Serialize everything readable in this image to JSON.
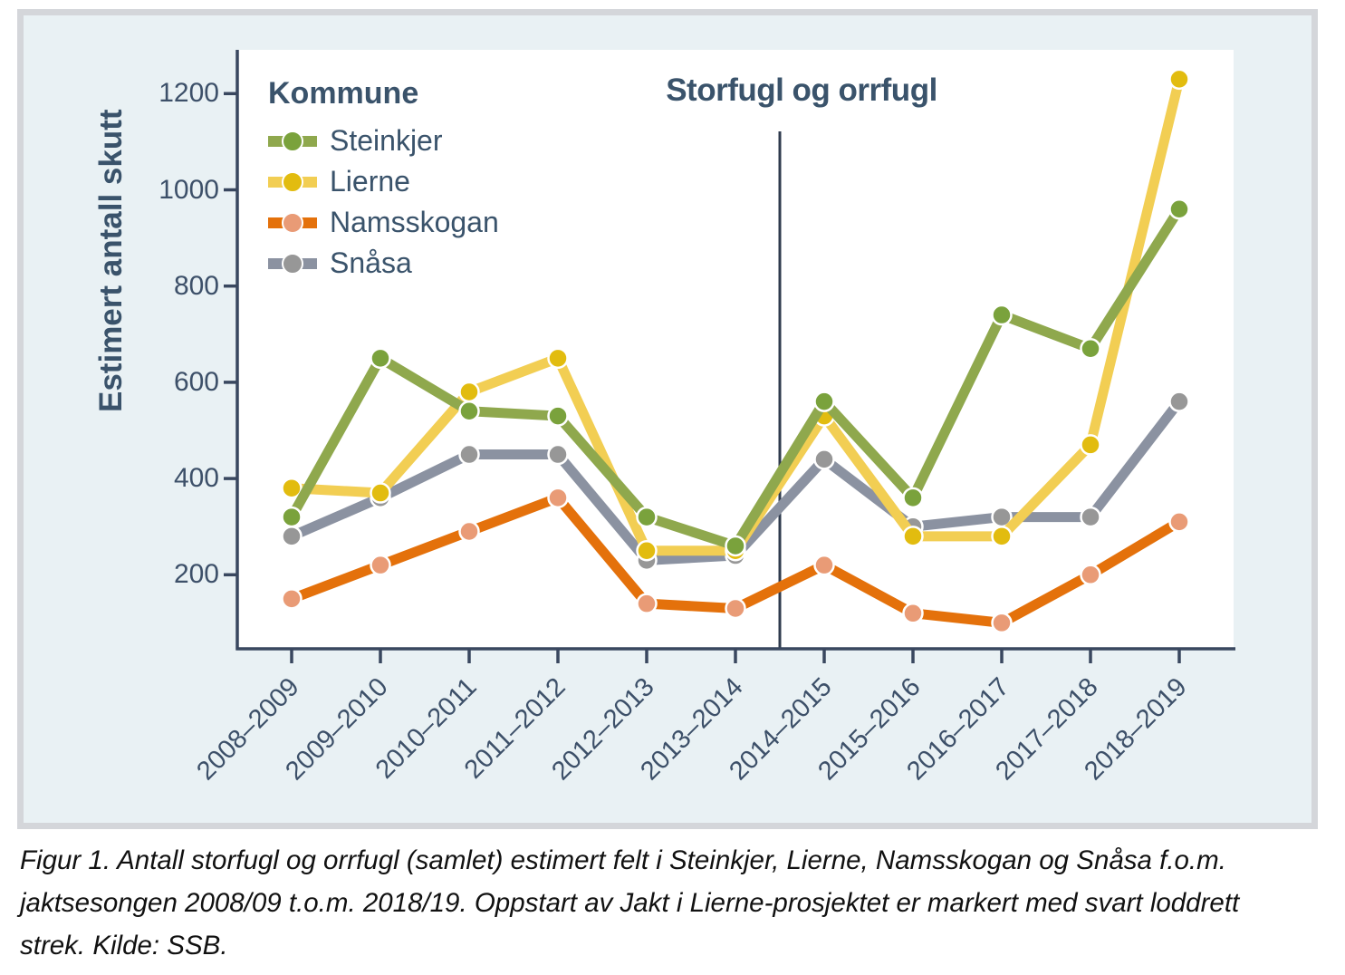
{
  "figure": {
    "title": "Storfugl og orrfugl",
    "legend_title": "Kommune",
    "y_axis_label": "Estimert antall skutt",
    "caption": "Figur 1. Antall storfugl og orrfugl (samlet) estimert felt i Steinkjer, Lierne, Namsskogan og Snåsa f.o.m. jaktsesongen 2008/09 t.o.m. 2018/19. Oppstart av Jakt i Lierne-prosjektet er markert med svart loddrett strek. Kilde: SSB."
  },
  "colors": {
    "panel_background": "#e9f1f4",
    "panel_border": "#d4d6da",
    "plot_background": "#ffffff",
    "axis": "#39475f",
    "text": "#3d5069",
    "title_text": "#3a536b",
    "event_line": "#2f3b4e"
  },
  "chart_data": {
    "type": "line",
    "title": "Storfugl og orrfugl",
    "xlabel": "",
    "ylabel": "Estimert antall skutt",
    "legend_title": "Kommune",
    "legend_position": "top-left-inside",
    "grid": false,
    "ylim": [
      0,
      1300
    ],
    "yticks": [
      200,
      400,
      600,
      800,
      1000,
      1200
    ],
    "categories": [
      "2008–2009",
      "2009–2010",
      "2010–2011",
      "2011–2012",
      "2012–2013",
      "2013–2014",
      "2014–2015",
      "2015–2016",
      "2016–2017",
      "2017–2018",
      "2018–2019"
    ],
    "series": [
      {
        "name": "Steinkjer",
        "line_color": "#8fa84d",
        "point_color": "#7aa23c",
        "values": [
          320,
          650,
          540,
          530,
          320,
          260,
          560,
          360,
          740,
          670,
          960
        ]
      },
      {
        "name": "Lierne",
        "line_color": "#f2ce53",
        "point_color": "#e2bc0f",
        "values": [
          380,
          370,
          580,
          650,
          250,
          250,
          530,
          280,
          280,
          470,
          1230
        ]
      },
      {
        "name": "Namsskogan",
        "line_color": "#e4710b",
        "point_color": "#e99b76",
        "values": [
          150,
          220,
          290,
          360,
          140,
          130,
          220,
          120,
          100,
          200,
          310
        ]
      },
      {
        "name": "Snåsa",
        "line_color": "#8b92a1",
        "point_color": "#979797",
        "values": [
          280,
          360,
          450,
          450,
          230,
          240,
          440,
          300,
          320,
          320,
          560
        ]
      }
    ],
    "annotation_vline": {
      "between_categories": [
        "2013–2014",
        "2014–2015"
      ],
      "after_index": 5,
      "meaning": "svart loddrett strek"
    }
  }
}
